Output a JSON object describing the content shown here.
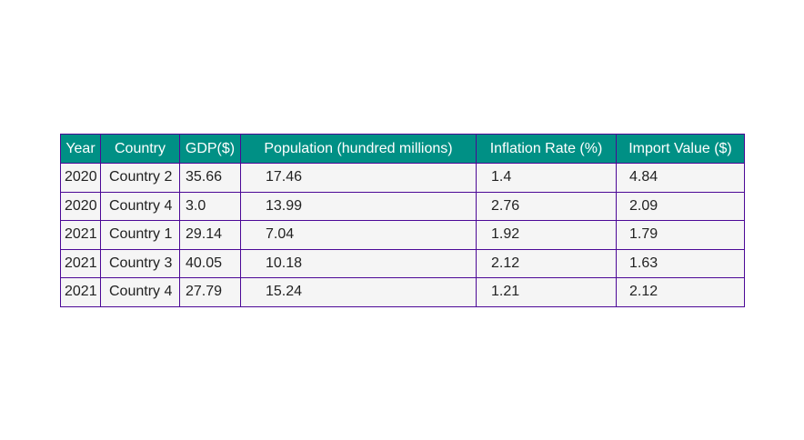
{
  "chart_data": {
    "type": "table",
    "columns": [
      "Year",
      "Country",
      "GDP($)",
      "Population (hundred millions)",
      "Inflation Rate (%)",
      "Import Value ($)"
    ],
    "rows": [
      [
        "2020",
        "Country 2",
        "35.66",
        "17.46",
        "1.4",
        "4.84"
      ],
      [
        "2020",
        "Country 4",
        "3.0",
        "13.99",
        "2.76",
        "2.09"
      ],
      [
        "2021",
        "Country 1",
        "29.14",
        "7.04",
        "1.92",
        "1.79"
      ],
      [
        "2021",
        "Country 3",
        "40.05",
        "10.18",
        "2.12",
        "1.63"
      ],
      [
        "2021",
        "Country 4",
        "27.79",
        "15.24",
        "1.21",
        "2.12"
      ]
    ],
    "colors": {
      "header_bg": "#009085",
      "header_text": "#ffffff",
      "cell_bg": "#f5f5f5",
      "border": "#4b0896"
    }
  }
}
